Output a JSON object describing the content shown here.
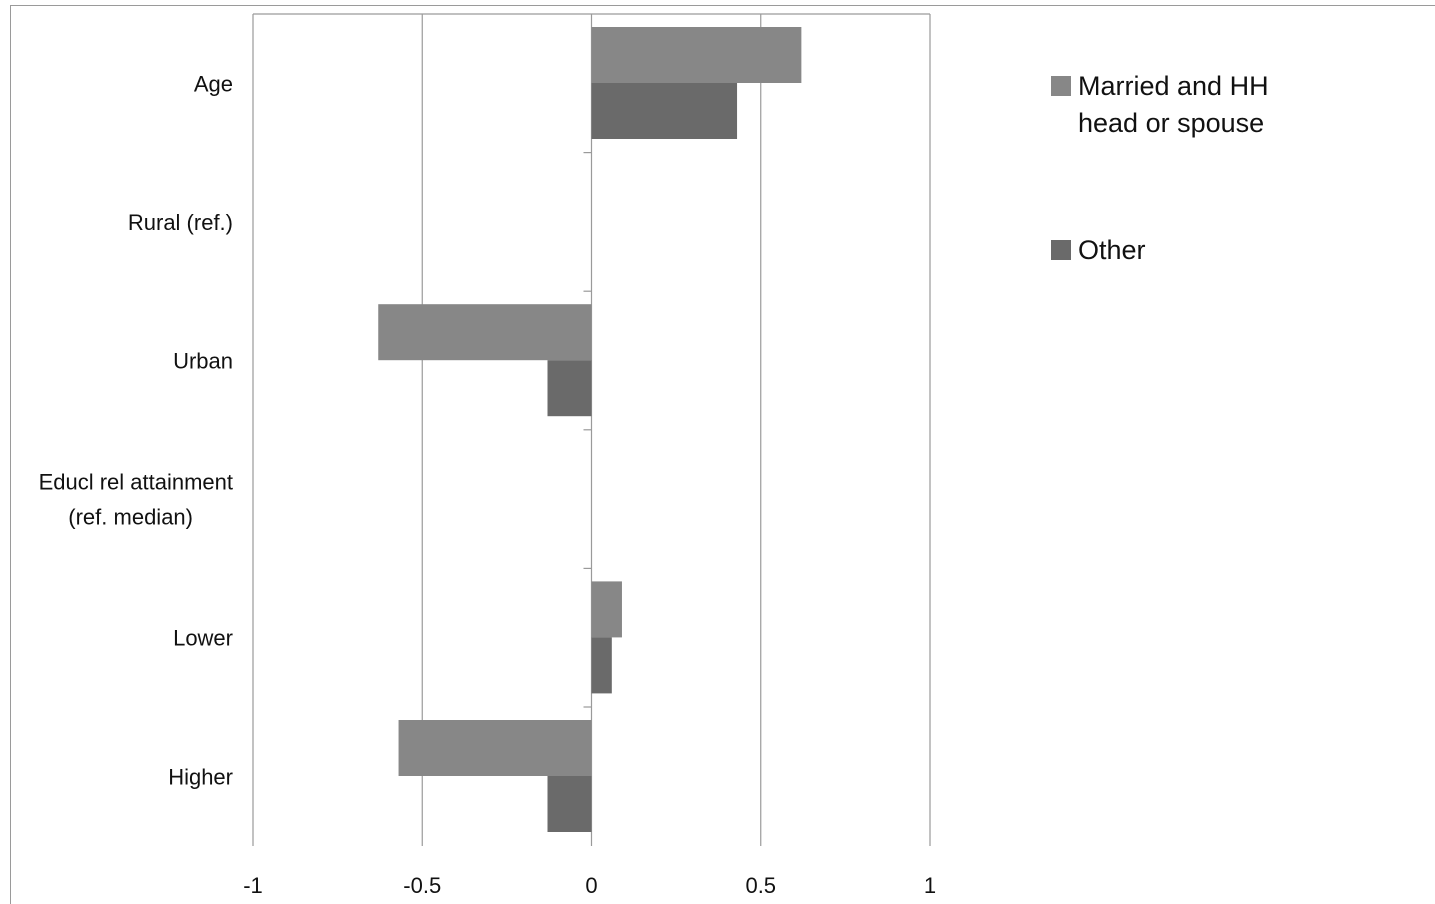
{
  "chart_data": {
    "type": "bar",
    "orientation": "horizontal",
    "categories": [
      [
        "Age"
      ],
      [
        "Rural (ref.)"
      ],
      [
        "Urban"
      ],
      [
        "Educl rel attainment",
        "(ref. median)"
      ],
      [
        "Lower"
      ],
      [
        "Higher"
      ]
    ],
    "series": [
      {
        "name": [
          "Married and HH",
          "head or spouse"
        ],
        "color": "#878787",
        "values": [
          0.62,
          0,
          -0.63,
          0,
          0.09,
          -0.57
        ]
      },
      {
        "name": [
          "Other"
        ],
        "color": "#6a6a6a",
        "values": [
          0.43,
          0,
          -0.13,
          0,
          0.06,
          -0.13
        ]
      }
    ],
    "x_ticks": [
      "-1",
      "-0.5",
      "0",
      "0.5",
      "1"
    ],
    "xlim": [
      -1,
      1
    ],
    "grid": "vertical",
    "legend_position": "right"
  }
}
